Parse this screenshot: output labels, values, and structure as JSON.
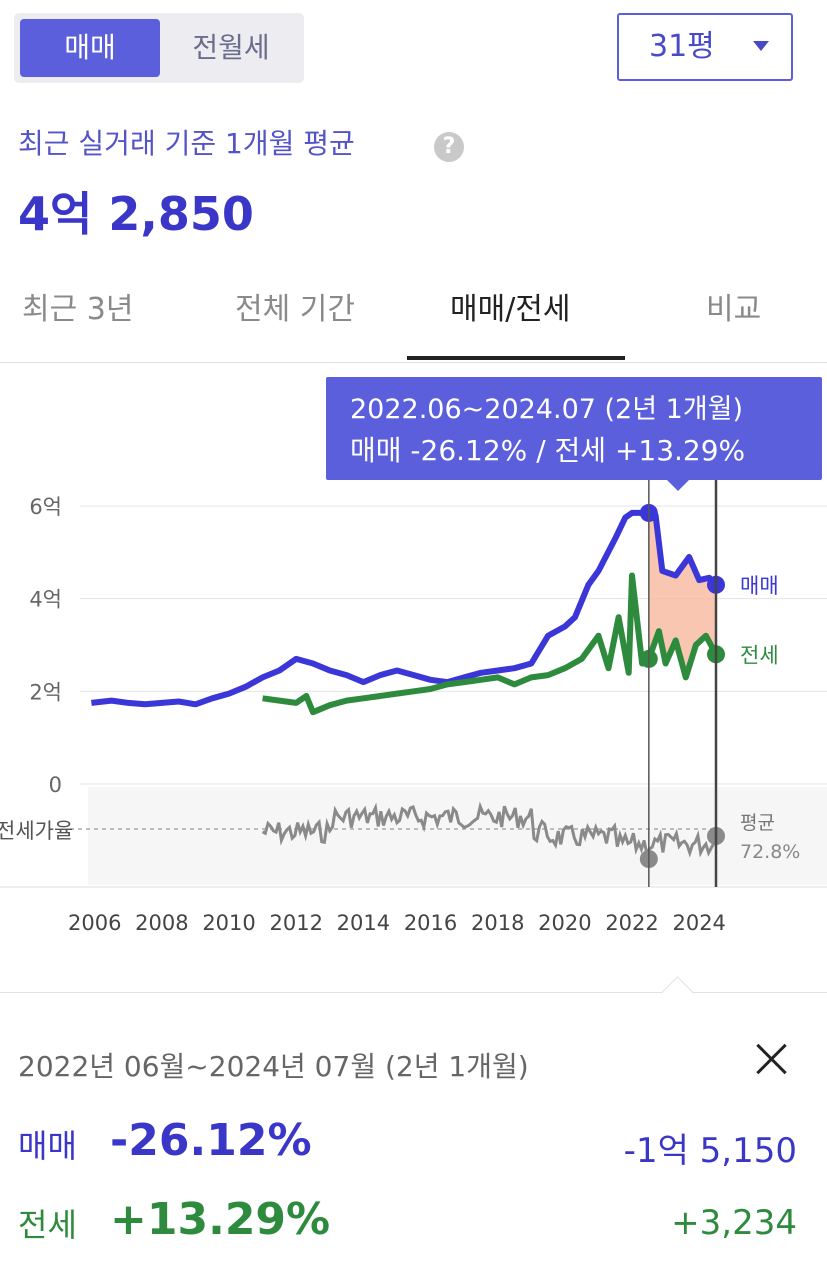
{
  "toggle": {
    "sale_label": "매매",
    "rent_label": "전월세"
  },
  "area": {
    "selected": "31평"
  },
  "summary": {
    "label": "최근 실거래 기준 1개월 평균",
    "help_icon": "help-icon",
    "value": "4억 2,850"
  },
  "tabs": [
    {
      "label": "최근 3년"
    },
    {
      "label": "전체 기간"
    },
    {
      "label": "매매/전세"
    },
    {
      "label": "비교"
    }
  ],
  "active_tab": "매매/전세",
  "tooltip": {
    "range": "2022.06~2024.07 (2년 1개월)",
    "changes": "매매 -26.12%  /  전세 +13.29%"
  },
  "colors": {
    "accent": "#5b5fdc",
    "sale_line": "#3a36d8",
    "rent_line": "#2e8b3e",
    "ratio_line": "#8a8a8a",
    "highlight_fill": "#f8b89e"
  },
  "chart_data": {
    "type": "line",
    "x_ticks": [
      "2006",
      "2008",
      "2010",
      "2012",
      "2014",
      "2016",
      "2018",
      "2020",
      "2022",
      "2024"
    ],
    "y_ticks": [
      "0",
      "2억",
      "4억",
      "6억"
    ],
    "ylim": [
      0,
      6
    ],
    "xlim": [
      2005.8,
      2024.5
    ],
    "grid": true,
    "series": [
      {
        "name": "매매",
        "color": "#3a36d8",
        "points": [
          [
            2005.9,
            1.75
          ],
          [
            2006.5,
            1.8
          ],
          [
            2007.0,
            1.75
          ],
          [
            2007.5,
            1.72
          ],
          [
            2008.0,
            1.75
          ],
          [
            2008.5,
            1.78
          ],
          [
            2009.0,
            1.72
          ],
          [
            2009.5,
            1.85
          ],
          [
            2010.0,
            1.95
          ],
          [
            2010.5,
            2.1
          ],
          [
            2011.0,
            2.3
          ],
          [
            2011.5,
            2.45
          ],
          [
            2012.0,
            2.7
          ],
          [
            2012.5,
            2.6
          ],
          [
            2013.0,
            2.45
          ],
          [
            2013.5,
            2.35
          ],
          [
            2014.0,
            2.2
          ],
          [
            2014.5,
            2.35
          ],
          [
            2015.0,
            2.45
          ],
          [
            2015.5,
            2.35
          ],
          [
            2016.0,
            2.25
          ],
          [
            2016.5,
            2.2
          ],
          [
            2017.0,
            2.3
          ],
          [
            2017.5,
            2.4
          ],
          [
            2018.0,
            2.45
          ],
          [
            2018.5,
            2.5
          ],
          [
            2019.0,
            2.6
          ],
          [
            2019.5,
            3.2
          ],
          [
            2020.0,
            3.4
          ],
          [
            2020.3,
            3.6
          ],
          [
            2020.7,
            4.3
          ],
          [
            2021.0,
            4.6
          ],
          [
            2021.5,
            5.3
          ],
          [
            2021.8,
            5.75
          ],
          [
            2022.0,
            5.85
          ],
          [
            2022.5,
            5.85
          ],
          [
            2022.7,
            5.8
          ],
          [
            2022.9,
            4.6
          ],
          [
            2023.3,
            4.5
          ],
          [
            2023.7,
            4.9
          ],
          [
            2024.0,
            4.4
          ],
          [
            2024.3,
            4.45
          ],
          [
            2024.5,
            4.3
          ]
        ],
        "end_label": "매매"
      },
      {
        "name": "전세",
        "color": "#2e8b3e",
        "points": [
          [
            2011.0,
            1.85
          ],
          [
            2011.5,
            1.8
          ],
          [
            2012.0,
            1.75
          ],
          [
            2012.3,
            1.9
          ],
          [
            2012.5,
            1.55
          ],
          [
            2013.0,
            1.7
          ],
          [
            2013.5,
            1.8
          ],
          [
            2014.0,
            1.85
          ],
          [
            2014.5,
            1.9
          ],
          [
            2015.0,
            1.95
          ],
          [
            2015.5,
            2.0
          ],
          [
            2016.0,
            2.05
          ],
          [
            2016.5,
            2.15
          ],
          [
            2017.0,
            2.2
          ],
          [
            2017.5,
            2.25
          ],
          [
            2018.0,
            2.3
          ],
          [
            2018.5,
            2.15
          ],
          [
            2019.0,
            2.3
          ],
          [
            2019.5,
            2.35
          ],
          [
            2020.0,
            2.5
          ],
          [
            2020.5,
            2.7
          ],
          [
            2021.0,
            3.2
          ],
          [
            2021.3,
            2.5
          ],
          [
            2021.6,
            3.6
          ],
          [
            2021.9,
            2.4
          ],
          [
            2022.0,
            4.5
          ],
          [
            2022.3,
            2.6
          ],
          [
            2022.5,
            2.7
          ],
          [
            2022.8,
            3.3
          ],
          [
            2023.0,
            2.6
          ],
          [
            2023.3,
            3.1
          ],
          [
            2023.6,
            2.3
          ],
          [
            2023.9,
            3.0
          ],
          [
            2024.2,
            3.2
          ],
          [
            2024.5,
            2.8
          ]
        ],
        "end_label": "전세"
      }
    ],
    "ratio_panel": {
      "left_label": "전세가율",
      "right_label": "평균",
      "average": "72.8%",
      "color": "#8a8a8a"
    },
    "selection": {
      "from": 2022.5,
      "to": 2024.5
    }
  },
  "detail": {
    "period": "2022년 06월~2024년 07월 (2년 1개월)",
    "close_icon": "close-icon",
    "rows": [
      {
        "label": "매매",
        "pct": "-26.12%",
        "amount": "-1억 5,150"
      },
      {
        "label": "전세",
        "pct": "+13.29%",
        "amount": "+3,234"
      }
    ]
  }
}
